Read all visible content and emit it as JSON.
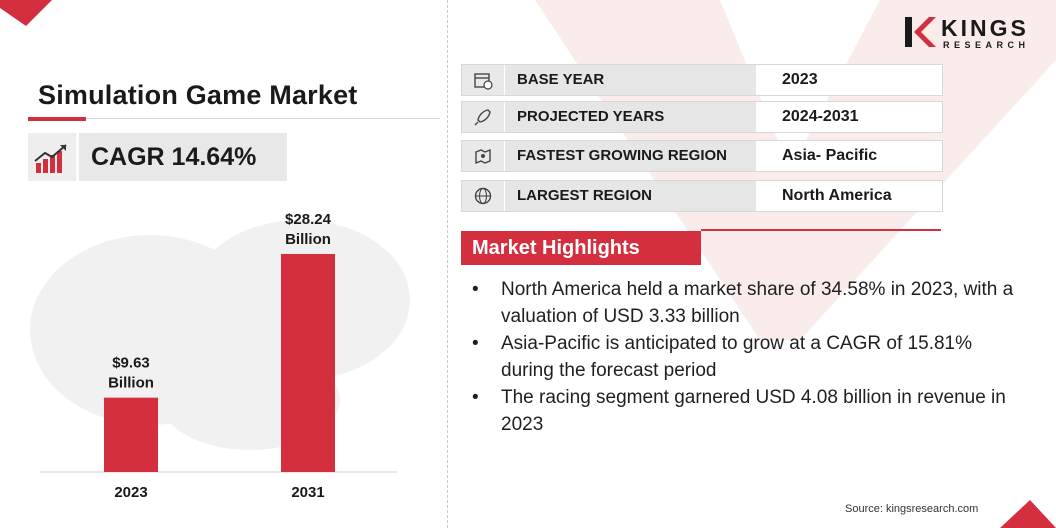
{
  "title": "Simulation Game Market",
  "cagr": "CAGR 14.64%",
  "brand": {
    "name": "KINGS",
    "sub": "RESEARCH",
    "accent": "#d32f3f"
  },
  "info_rows": [
    {
      "icon": "calendar-icon",
      "label": "BASE YEAR",
      "value": "2023"
    },
    {
      "icon": "rocket-icon",
      "label": "PROJECTED YEARS",
      "value": "2024-2031"
    },
    {
      "icon": "map-region-icon",
      "label": "FASTEST GROWING REGION",
      "value": "Asia- Pacific"
    },
    {
      "icon": "globe-icon",
      "label": "LARGEST REGION",
      "value": "North America"
    }
  ],
  "highlights": {
    "heading": "Market Highlights",
    "items": [
      "North America held a market share of 34.58% in 2023, with a valuation of USD 3.33 billion",
      "Asia-Pacific is anticipated to grow at a CAGR of 15.81% during the forecast period",
      "The racing segment garnered USD 4.08 billion in revenue in 2023"
    ]
  },
  "source": "Source: kingsresearch.com",
  "chart_data": {
    "type": "bar",
    "categories": [
      "2023",
      "2031"
    ],
    "values": [
      9.63,
      28.24
    ],
    "labels": [
      [
        "$9.63",
        "Billion"
      ],
      [
        "$28.24",
        "Billion"
      ]
    ],
    "bar_color": "#d32f3f",
    "grid": false
  }
}
